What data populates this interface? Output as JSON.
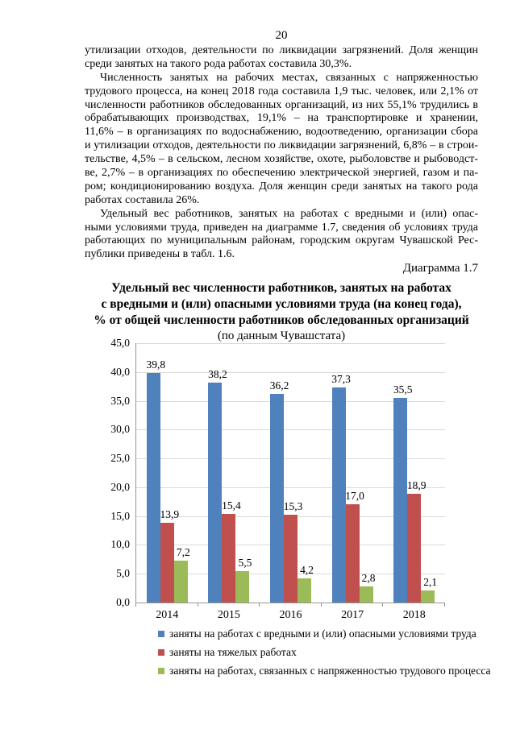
{
  "page": {
    "number": "20"
  },
  "body": {
    "paragraphs": [
      {
        "indent": false,
        "lines": [
          "утилизации отходов, деятельности по ликвидации загрязнений. Доля женщин",
          "среди занятых на такого рода работах составила 30,3%."
        ]
      },
      {
        "indent": true,
        "lines": [
          "Численность занятых на рабочих местах, связанных с напряженностью",
          "трудового процесса, на конец 2018 года составила 1,9 тыс. человек, или 2,1% от",
          "численности работников обследованных организаций, из них 55,1% трудились в",
          "обрабатывающих производствах, 19,1% – на транспортировке и хранении,",
          "11,6% – в организациях по водоснабжению, водоотведению, организации сбора",
          "и утилизации отходов, деятельности по ликвидации загрязнений, 6,8% – в строи-",
          "тельстве, 4,5% – в сельском, лесном хозяйстве, охоте, рыболовстве и рыбоводст-",
          "ве, 2,7% – в организациях по обеспечению электрической энергией, газом и па-",
          "ром; кондиционированию воздуха. Доля женщин среди занятых на такого рода",
          "работах составила 26%."
        ]
      },
      {
        "indent": true,
        "lines": [
          "Удельный вес работников, занятых на работах с вредными и (или) опас-",
          "ными условиями труда, приведен на диаграмме 1.7, сведения об условиях труда",
          "работающих по муниципальным районам, городским округам Чувашской Рес-",
          "публики приведены в табл. 1.6."
        ]
      }
    ]
  },
  "diagram_label": "Диаграмма 1.7",
  "chart": {
    "title_lines": [
      "Удельный вес численности работников, занятых на работах",
      "с вредными и (или) опасными условиями труда (на конец года),",
      "% от общей численности работников обследованных организаций"
    ],
    "subtitle": "(по данным Чувашстата)"
  },
  "chart_data": {
    "type": "bar",
    "title": "Удельный вес численности работников, занятых на работах с вредными и (или) опасными условиями труда (на конец года), % от общей численности работников обследованных организаций (по данным Чувашстата)",
    "categories": [
      "2014",
      "2015",
      "2016",
      "2017",
      "2018"
    ],
    "series": [
      {
        "name": "заняты на работах с вредными и (или) опасными условиями труда",
        "color": "#4F81BD",
        "values": [
          39.8,
          38.2,
          36.2,
          37.3,
          35.5
        ]
      },
      {
        "name": "заняты на тяжелых работах",
        "color": "#C0504D",
        "values": [
          13.9,
          15.4,
          15.3,
          17.0,
          18.9
        ]
      },
      {
        "name": "заняты на работах, связанных с напряженностью трудового процесса",
        "color": "#9BBB59",
        "values": [
          7.2,
          5.5,
          4.2,
          2.8,
          2.1
        ]
      }
    ],
    "ylim": [
      0,
      45
    ],
    "ytick_step": 5,
    "grid": true,
    "legend_position": "bottom-left",
    "decimal_separator": ","
  },
  "colors": {
    "gridline": "#D9D9D9",
    "axis": "#969696",
    "text": "#000000"
  }
}
